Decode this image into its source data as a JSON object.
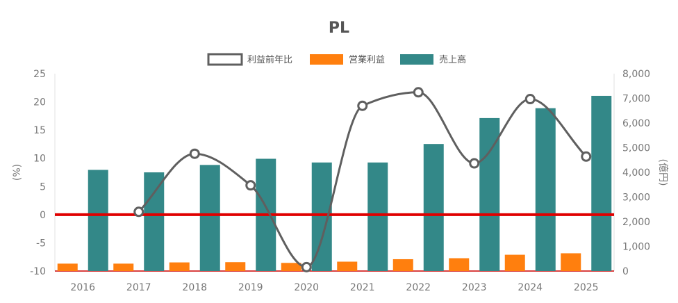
{
  "chart_data": {
    "type": "bar",
    "title": "PL",
    "categories": [
      "2016",
      "2017",
      "2018",
      "2019",
      "2020",
      "2021",
      "2022",
      "2023",
      "2024",
      "2025"
    ],
    "series": [
      {
        "name": "利益前年比",
        "kind": "line",
        "axis": "left",
        "color": "#5f5f5f",
        "values": [
          null,
          0.5,
          10.8,
          5.2,
          -9.3,
          19.3,
          21.7,
          9.1,
          20.5,
          10.3
        ]
      },
      {
        "name": "営業利益",
        "kind": "bar",
        "axis": "right",
        "color": "#ff7f0e",
        "values": [
          300,
          300,
          350,
          360,
          330,
          380,
          480,
          520,
          660,
          720
        ]
      },
      {
        "name": "売上高",
        "kind": "bar",
        "axis": "right",
        "color": "#338888",
        "values": [
          4100,
          4000,
          4300,
          4550,
          4400,
          4400,
          5150,
          6200,
          6600,
          7100
        ]
      }
    ],
    "ylabel_left": "(%)",
    "ylabel_right": "(億円)",
    "ylim_left": [
      -10,
      25
    ],
    "ylim_right": [
      0,
      8000
    ],
    "yticks_left": [
      "-10",
      "-5",
      "0",
      "5",
      "10",
      "15",
      "20",
      "25"
    ],
    "yticks_right": [
      "0",
      "1,000",
      "2,000",
      "3,000",
      "4,000",
      "5,000",
      "6,000",
      "7,000",
      "8,000"
    ],
    "zero_line_color": "#e00000",
    "grid": false,
    "legend_position": "top-center"
  }
}
